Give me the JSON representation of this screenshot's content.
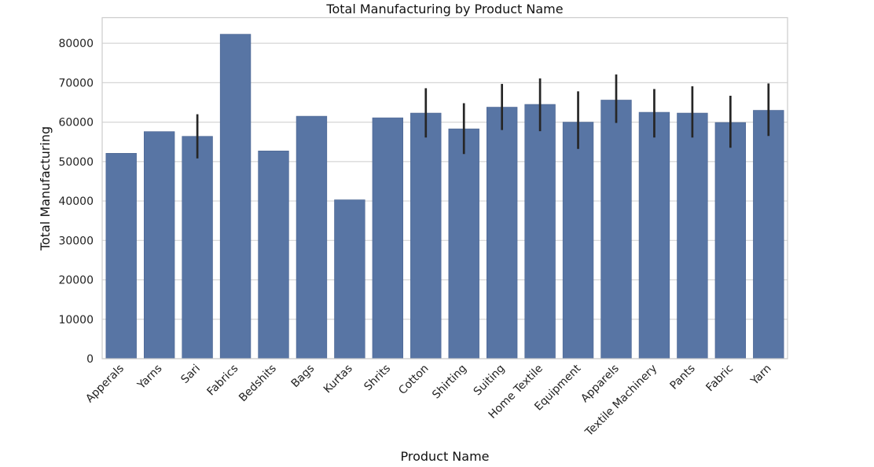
{
  "chart_data": {
    "type": "bar",
    "title": "Total Manufacturing by Product Name",
    "xlabel": "Product Name",
    "ylabel": "Total Manufacturing",
    "ylim": [
      0,
      86500
    ],
    "yticks": [
      0,
      10000,
      20000,
      30000,
      40000,
      50000,
      60000,
      70000,
      80000
    ],
    "grid": "horizontal",
    "bar_color": "#5875a4",
    "error_bar_color": "#262626",
    "categories": [
      "Apperals",
      "Yarns",
      "Sari",
      "Fabrics",
      "Bedshits",
      "Bags",
      "Kurtas",
      "Shrits",
      "Cotton",
      "Shirting",
      "Suiting",
      "Home Textile",
      "Equipment",
      "Apparels",
      "Textile Machinery",
      "Pants",
      "Fabric",
      "Yarn"
    ],
    "values": [
      52100,
      57600,
      56400,
      82300,
      52700,
      61500,
      40300,
      61100,
      62300,
      58300,
      63800,
      64500,
      60000,
      65600,
      62500,
      62300,
      59900,
      63000
    ],
    "error_low": [
      null,
      null,
      50800,
      null,
      null,
      null,
      null,
      null,
      56100,
      51900,
      58000,
      57700,
      53200,
      59800,
      56100,
      56100,
      53500,
      56500
    ],
    "error_high": [
      null,
      null,
      62000,
      null,
      null,
      null,
      null,
      null,
      68600,
      64800,
      69700,
      71100,
      67800,
      72100,
      68400,
      69100,
      66700,
      69800
    ]
  }
}
